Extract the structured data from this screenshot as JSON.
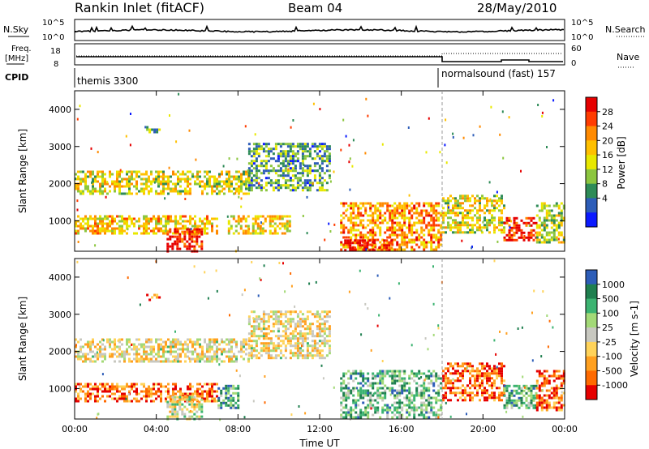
{
  "header": {
    "title": "Rankin Inlet (fitACF)",
    "beam": "Beam 04",
    "date": "28/May/2010"
  },
  "ancillary": {
    "nsky_label": "N.Sky",
    "nsky_ticks": [
      "10^5",
      "10^0"
    ],
    "nsearch_label": "N.Search",
    "nsearch_ticks": [
      "10^5",
      "10^0"
    ],
    "freq_label": "Freq.",
    "freq_unit": "[MHz]",
    "freq_ticks": [
      "18",
      "8"
    ],
    "nave_label": "Nave",
    "nave_ticks": [
      "60",
      "0"
    ],
    "cpid_label": "CPID",
    "cpid_segments": [
      {
        "name": "themis 3300",
        "start_hour": 0
      },
      {
        "name": "normalsound (fast) 157",
        "start_hour": 18
      }
    ]
  },
  "chart_data": [
    {
      "type": "heatmap",
      "panel": "power",
      "xlabel": "",
      "ylabel": "Slant Range [km]",
      "x_ticks": [
        "00:00",
        "04:00",
        "08:00",
        "12:00",
        "16:00",
        "20:00",
        "00:00"
      ],
      "x_range_hours": [
        0,
        24
      ],
      "y_ticks": [
        1000,
        2000,
        3000,
        4000
      ],
      "y_range_km": [
        180,
        4500
      ],
      "colorbar_label": "Power [dB]",
      "colorbar_ticks": [
        "28",
        "24",
        "20",
        "16",
        "12",
        "8",
        "4"
      ],
      "colorbar_colors": [
        "#e60000",
        "#ff3c00",
        "#ff8a00",
        "#ffc000",
        "#e8e800",
        "#8cc63f",
        "#2e8b57",
        "#2d5db8",
        "#0b1aff"
      ],
      "echo_regions": [
        {
          "t0": 0.0,
          "t1": 8.5,
          "r0": 1750,
          "r1": 2350,
          "level": 0.5
        },
        {
          "t0": 8.5,
          "t1": 12.5,
          "r0": 1800,
          "r1": 3100,
          "level": 0.3
        },
        {
          "t0": 0.0,
          "t1": 7.0,
          "r0": 650,
          "r1": 1150,
          "level": 0.6
        },
        {
          "t0": 4.5,
          "t1": 6.2,
          "r0": 200,
          "r1": 800,
          "level": 0.95
        },
        {
          "t0": 7.5,
          "t1": 10.5,
          "r0": 650,
          "r1": 1150,
          "level": 0.55
        },
        {
          "t0": 13.0,
          "t1": 18.0,
          "r0": 200,
          "r1": 1500,
          "level": 0.7
        },
        {
          "t0": 13.2,
          "t1": 15.5,
          "r0": 200,
          "r1": 500,
          "level": 0.95
        },
        {
          "t0": 18.0,
          "t1": 21.0,
          "r0": 700,
          "r1": 1700,
          "level": 0.5
        },
        {
          "t0": 21.0,
          "t1": 22.6,
          "r0": 450,
          "r1": 1100,
          "level": 0.9
        },
        {
          "t0": 22.6,
          "t1": 24.0,
          "r0": 450,
          "r1": 1500,
          "level": 0.45
        },
        {
          "t0": 3.5,
          "t1": 4.2,
          "r0": 3400,
          "r1": 3550,
          "level": 0.4
        }
      ]
    },
    {
      "type": "heatmap",
      "panel": "velocity",
      "xlabel": "Time UT",
      "ylabel": "Slant Range [km]",
      "x_ticks": [
        "00:00",
        "04:00",
        "08:00",
        "12:00",
        "16:00",
        "20:00",
        "00:00"
      ],
      "x_range_hours": [
        0,
        24
      ],
      "y_ticks": [
        1000,
        2000,
        3000,
        4000
      ],
      "y_range_km": [
        180,
        4500
      ],
      "colorbar_label": "Velocity [m s-1]",
      "colorbar_ticks": [
        "1000",
        "500",
        "100",
        "25",
        "-25",
        "-100",
        "-500",
        "-1000"
      ],
      "colorbar_colors": [
        "#2d5db8",
        "#1f7f4f",
        "#3cb371",
        "#a3d977",
        "#c8c8c0",
        "#ffd35a",
        "#ffa020",
        "#ff6a00",
        "#e60000"
      ],
      "echo_regions": [
        {
          "t0": 0.0,
          "t1": 8.5,
          "r0": 1750,
          "r1": 2350,
          "level": 0.45
        },
        {
          "t0": 8.5,
          "t1": 12.5,
          "r0": 1800,
          "r1": 3100,
          "level": 0.45
        },
        {
          "t0": 0.0,
          "t1": 7.0,
          "r0": 650,
          "r1": 1150,
          "level": 0.2
        },
        {
          "t0": 7.0,
          "t1": 8.0,
          "r0": 450,
          "r1": 1100,
          "level": 0.75
        },
        {
          "t0": 4.5,
          "t1": 6.2,
          "r0": 200,
          "r1": 800,
          "level": 0.5
        },
        {
          "t0": 13.0,
          "t1": 18.0,
          "r0": 200,
          "r1": 1500,
          "level": 0.7
        },
        {
          "t0": 18.0,
          "t1": 21.0,
          "r0": 700,
          "r1": 1700,
          "level": 0.15
        },
        {
          "t0": 21.0,
          "t1": 22.6,
          "r0": 450,
          "r1": 1100,
          "level": 0.7
        },
        {
          "t0": 22.6,
          "t1": 24.0,
          "r0": 450,
          "r1": 1500,
          "level": 0.2
        },
        {
          "t0": 3.5,
          "t1": 4.2,
          "r0": 3400,
          "r1": 3550,
          "level": 0.25
        }
      ]
    }
  ],
  "annotation": {
    "mode_change_hour": 18
  }
}
